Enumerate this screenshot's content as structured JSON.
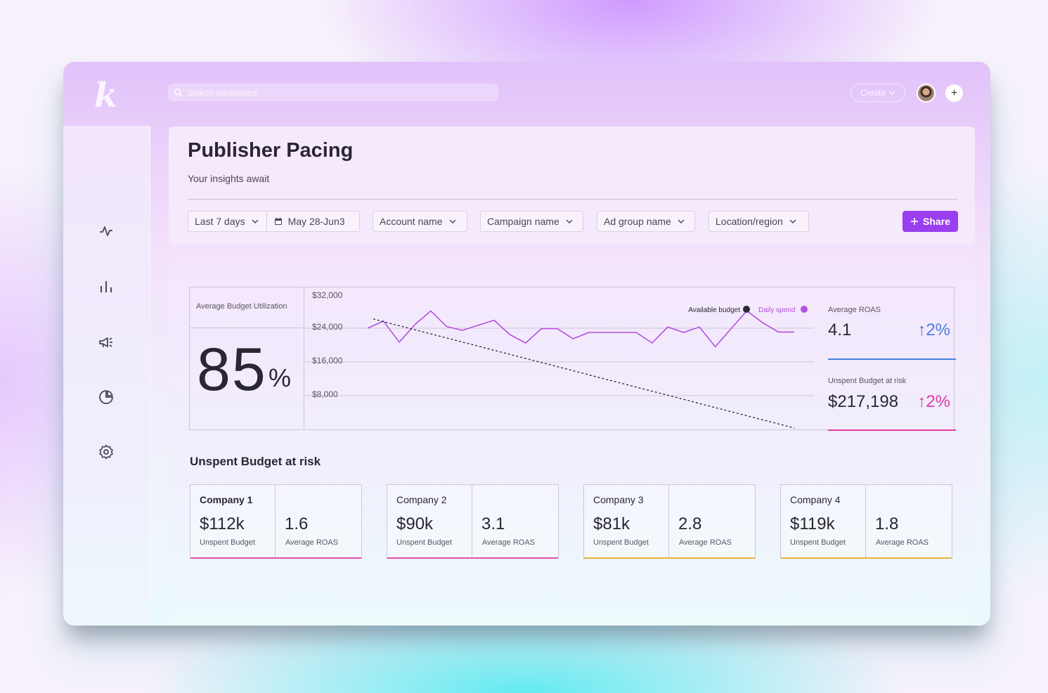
{
  "app": {
    "logo": "k",
    "search_placeholder": "Search advertisers",
    "create_label": "Create",
    "add_label": "+"
  },
  "sidebar": {
    "items": [
      {
        "icon": "activity-icon"
      },
      {
        "icon": "bar-chart-icon"
      },
      {
        "icon": "megaphone-icon"
      },
      {
        "icon": "pie-chart-icon"
      },
      {
        "icon": "settings-icon"
      }
    ]
  },
  "header": {
    "title": "Publisher Pacing",
    "subtitle": "Your insights await",
    "filters": {
      "range": "Last 7 days",
      "dates": "May 28-Jun3",
      "account": "Account name",
      "campaign": "Campaign name",
      "ad_group": "Ad group name",
      "location": "Location/region"
    },
    "share_label": "Share"
  },
  "utilization": {
    "label": "Average Budget Utilization",
    "value": "85",
    "unit": "%"
  },
  "chart_data": {
    "type": "line",
    "yticks": [
      "$32,000",
      "$24,000",
      "$16,000",
      "$8,000"
    ],
    "ylim": [
      0,
      32000
    ],
    "legend": [
      {
        "name": "Available budget",
        "color": "#2a2733"
      },
      {
        "name": "Daily spend",
        "color": "#b44fe0"
      }
    ],
    "series": [
      {
        "name": "Daily spend",
        "color": "#b44fe0",
        "values": [
          24000,
          25700,
          20700,
          24900,
          28100,
          24400,
          23500,
          24700,
          25900,
          22500,
          20500,
          23900,
          23900,
          21500,
          23000,
          23000,
          23000,
          23000,
          20500,
          24300,
          23000,
          24300,
          19600,
          23900,
          28100,
          25300,
          23100,
          23100
        ]
      },
      {
        "name": "Available budget",
        "color": "#2a2733",
        "dashed": true,
        "values": [
          26200,
          0
        ]
      }
    ],
    "grid": true
  },
  "stats": {
    "roas": {
      "label": "Average ROAS",
      "value": "4.1",
      "change": "↑2%",
      "color": "#4a7fe0"
    },
    "unspent": {
      "label": "Unspent Budget at risk",
      "value": "$217,198",
      "change": "↑2%",
      "color": "#e03aa8"
    }
  },
  "section_title": "Unspent Budget at risk",
  "companies": [
    {
      "name": "Company 1",
      "budget": "$112k",
      "budget_label": "Unspent Budget",
      "roas": "1.6",
      "roas_label": "Average ROAS",
      "color": "#e24fb6"
    },
    {
      "name": "Company 2",
      "budget": "$90k",
      "budget_label": "Unspent Budget",
      "roas": "3.1",
      "roas_label": "Average ROAS",
      "color": "#e24fb6"
    },
    {
      "name": "Company 3",
      "budget": "$81k",
      "budget_label": "Unspent Budget",
      "roas": "2.8",
      "roas_label": "Average ROAS",
      "color": "#e5b23a"
    },
    {
      "name": "Company 4",
      "budget": "$119k",
      "budget_label": "Unspent Budget",
      "roas": "1.8",
      "roas_label": "Average ROAS",
      "color": "#e5b23a"
    }
  ]
}
